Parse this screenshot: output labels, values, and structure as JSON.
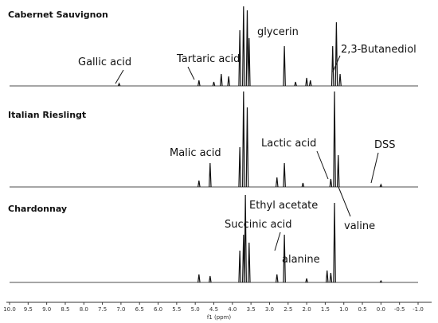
{
  "chart_data": {
    "type": "spectrum",
    "x_label": "f1 (ppm)",
    "xlim": [
      10.0,
      -1.0
    ],
    "xticks": [
      {
        "value": 10,
        "label": "10.0"
      },
      9.5,
      {
        "value": 9,
        "label": "9.0"
      },
      8.5,
      {
        "value": 8,
        "label": "8.0"
      },
      7.5,
      {
        "value": 7,
        "label": "7.0"
      },
      6.5,
      {
        "value": 6,
        "label": "6.0"
      },
      5.5,
      {
        "value": 5,
        "label": "5.0"
      },
      4.5,
      {
        "value": 4,
        "label": "4.0"
      },
      3.5,
      {
        "value": 3,
        "label": "3.0"
      },
      2.5,
      {
        "value": 2,
        "label": "2.0"
      },
      1.5,
      {
        "value": 1,
        "label": "1.0"
      },
      0.5,
      {
        "value": 0,
        "label": "0.0"
      },
      -0.5,
      {
        "value": -1,
        "label": "-1.0"
      }
    ],
    "series": [
      {
        "name": "Cabernet Sauvignon",
        "color": "#111111",
        "x": [
          7.05,
          4.9,
          4.5,
          4.3,
          4.1,
          3.8,
          3.7,
          3.6,
          3.55,
          2.6,
          2.3,
          2.0,
          1.9,
          1.3,
          1.2,
          1.1
        ],
        "values": [
          0.03,
          0.07,
          0.05,
          0.15,
          0.12,
          0.7,
          1.0,
          0.95,
          0.6,
          0.5,
          0.05,
          0.1,
          0.07,
          0.5,
          0.8,
          0.15
        ]
      },
      {
        "name": "Italian Rieslingt",
        "color": "#111111",
        "x": [
          4.9,
          4.6,
          3.8,
          3.7,
          3.6,
          2.8,
          2.6,
          2.1,
          1.35,
          1.25,
          1.15,
          0.0
        ],
        "values": [
          0.08,
          0.3,
          0.5,
          1.2,
          1.0,
          0.12,
          0.3,
          0.05,
          0.1,
          1.2,
          0.4,
          0.03
        ]
      },
      {
        "name": "Chardonnay",
        "color": "#111111",
        "x": [
          4.9,
          4.6,
          3.8,
          3.7,
          3.65,
          3.55,
          2.8,
          2.6,
          2.0,
          1.45,
          1.35,
          1.25,
          0.0
        ],
        "values": [
          0.1,
          0.08,
          0.4,
          0.6,
          1.1,
          0.5,
          0.1,
          0.6,
          0.05,
          0.15,
          0.12,
          1.0,
          0.02
        ]
      }
    ],
    "annotations": [
      "Gallic acid",
      "Tartaric acid",
      "glycerin",
      "2,3-Butanediol",
      "Malic acid",
      "Lactic acid",
      "DSS",
      "valine",
      "Ethyl acetate",
      "Succinic acid",
      "alanine"
    ]
  }
}
